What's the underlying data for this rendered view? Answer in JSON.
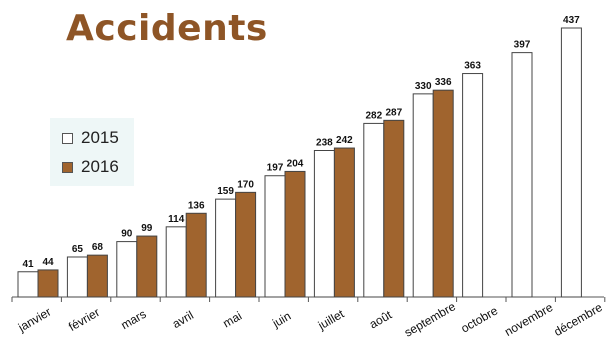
{
  "chart_data": {
    "type": "bar",
    "title": "Accidents",
    "categories": [
      "janvier",
      "février",
      "mars",
      "avril",
      "mai",
      "juin",
      "juillet",
      "août",
      "septembre",
      "octobre",
      "novembre",
      "décembre"
    ],
    "series": [
      {
        "name": "2015",
        "color": "#ffffff",
        "values": [
          41,
          65,
          90,
          114,
          159,
          197,
          238,
          282,
          330,
          363,
          397,
          437
        ]
      },
      {
        "name": "2016",
        "color": "#a0642e",
        "values": [
          44,
          68,
          99,
          136,
          170,
          204,
          242,
          287,
          336,
          null,
          null,
          null
        ]
      }
    ],
    "ylim": [
      0,
      437
    ],
    "grid": false,
    "legend": "left"
  }
}
